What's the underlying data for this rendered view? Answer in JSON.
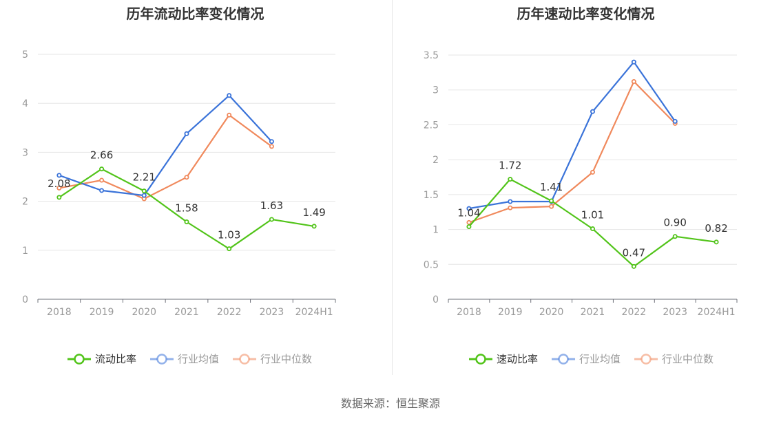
{
  "source_text": "数据来源：恒生聚源",
  "chart_data": [
    {
      "type": "line",
      "title": "历年流动比率变化情况",
      "xlabel": "",
      "ylabel": "",
      "categories": [
        "2018",
        "2019",
        "2020",
        "2021",
        "2022",
        "2023",
        "2024H1"
      ],
      "ylim": [
        0,
        5
      ],
      "yticks": [
        0,
        1,
        2,
        3,
        4,
        5
      ],
      "ytick_labels": [
        "0",
        "1",
        "2",
        "3",
        "4",
        "5"
      ],
      "grid": true,
      "legend_position": "bottom",
      "series": [
        {
          "name": "流动比率",
          "color": "#52c41a",
          "values": [
            2.08,
            2.66,
            2.21,
            1.58,
            1.03,
            1.63,
            1.49
          ],
          "labels": [
            "2.08",
            "2.66",
            "2.21",
            "1.58",
            "1.03",
            "1.63",
            "1.49"
          ]
        },
        {
          "name": "行业均值",
          "color": "#3a73d9",
          "values": [
            2.53,
            2.22,
            2.12,
            3.38,
            4.16,
            3.22,
            null
          ]
        },
        {
          "name": "行业中位数",
          "color": "#f0895c",
          "values": [
            2.27,
            2.43,
            2.05,
            2.49,
            3.76,
            3.12,
            null
          ]
        }
      ]
    },
    {
      "type": "line",
      "title": "历年速动比率变化情况",
      "xlabel": "",
      "ylabel": "",
      "categories": [
        "2018",
        "2019",
        "2020",
        "2021",
        "2022",
        "2023",
        "2024H1"
      ],
      "ylim": [
        0,
        3.5
      ],
      "yticks": [
        0,
        0.5,
        1,
        1.5,
        2,
        2.5,
        3,
        3.5
      ],
      "ytick_labels": [
        "0",
        "0.5",
        "1",
        "1.5",
        "2",
        "2.5",
        "3",
        "3.5"
      ],
      "grid": true,
      "legend_position": "bottom",
      "series": [
        {
          "name": "速动比率",
          "color": "#52c41a",
          "values": [
            1.04,
            1.72,
            1.41,
            1.01,
            0.47,
            0.9,
            0.82
          ],
          "labels": [
            "1.04",
            "1.72",
            "1.41",
            "1.01",
            "0.47",
            "0.90",
            "0.82"
          ]
        },
        {
          "name": "行业均值",
          "color": "#3a73d9",
          "values": [
            1.3,
            1.4,
            1.4,
            2.69,
            3.4,
            2.55,
            null
          ]
        },
        {
          "name": "行业中位数",
          "color": "#f0895c",
          "values": [
            1.1,
            1.31,
            1.33,
            1.82,
            3.12,
            2.52,
            null
          ]
        }
      ]
    }
  ]
}
